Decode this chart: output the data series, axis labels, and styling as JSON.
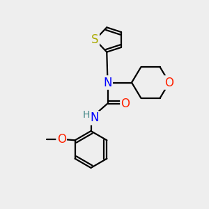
{
  "bg_color": "#eeeeee",
  "atom_colors": {
    "S": "#aaaa00",
    "O": "#ff2200",
    "N": "#0000ff",
    "H": "#448888",
    "C": "#000000"
  },
  "bond_color": "#000000",
  "bond_width": 1.6,
  "font_size_atoms": 12,
  "font_size_H": 10,
  "xlim": [
    0,
    10
  ],
  "ylim": [
    0,
    10
  ]
}
